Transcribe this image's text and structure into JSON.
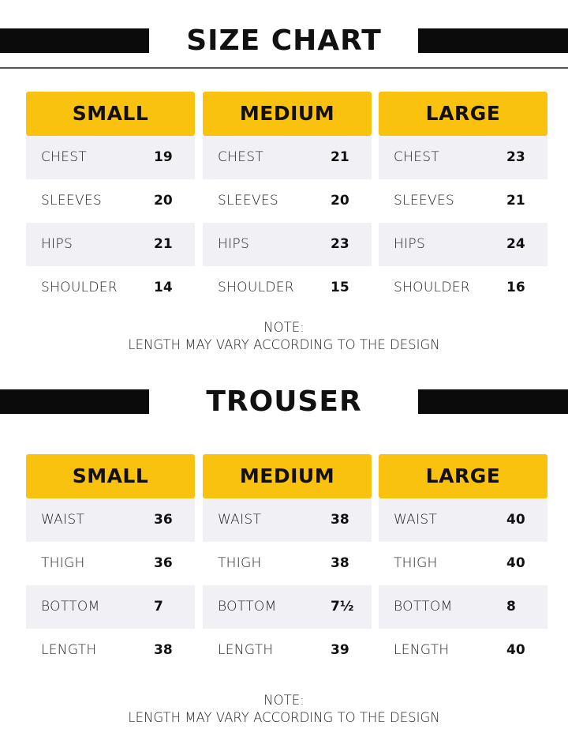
{
  "colors": {
    "accent": "#f8c20f",
    "bar": "#0b0b0b",
    "row_alt": "#f1f1f5"
  },
  "sections": [
    {
      "title": "SIZE CHART",
      "columns": [
        {
          "size": "SMALL",
          "rows": [
            [
              "CHEST",
              "19"
            ],
            [
              "SLEEVES",
              "20"
            ],
            [
              "HIPS",
              "21"
            ],
            [
              "SHOULDER",
              "14"
            ]
          ]
        },
        {
          "size": "MEDIUM",
          "rows": [
            [
              "CHEST",
              "21"
            ],
            [
              "SLEEVES",
              "20"
            ],
            [
              "HIPS",
              "23"
            ],
            [
              "SHOULDER",
              "15"
            ]
          ]
        },
        {
          "size": "LARGE",
          "rows": [
            [
              "CHEST",
              "23"
            ],
            [
              "SLEEVES",
              "21"
            ],
            [
              "HIPS",
              "24"
            ],
            [
              "SHOULDER",
              "16"
            ]
          ]
        }
      ],
      "note_label": "NOTE:",
      "note_text": "LENGTH MAY VARY ACCORDING TO THE DESIGN"
    },
    {
      "title": "TROUSER",
      "columns": [
        {
          "size": "SMALL",
          "rows": [
            [
              "WAIST",
              "36"
            ],
            [
              "THIGH",
              "36"
            ],
            [
              "BOTTOM",
              "7"
            ],
            [
              "LENGTH",
              "38"
            ]
          ]
        },
        {
          "size": "MEDIUM",
          "rows": [
            [
              "WAIST",
              "38"
            ],
            [
              "THIGH",
              "38"
            ],
            [
              "BOTTOM",
              "7½"
            ],
            [
              "LENGTH",
              "39"
            ]
          ]
        },
        {
          "size": "LARGE",
          "rows": [
            [
              "WAIST",
              "40"
            ],
            [
              "THIGH",
              "40"
            ],
            [
              "BOTTOM",
              "8"
            ],
            [
              "LENGTH",
              "40"
            ]
          ]
        }
      ],
      "note_label": "NOTE:",
      "note_text": "LENGTH MAY VARY ACCORDING TO THE DESIGN"
    }
  ]
}
